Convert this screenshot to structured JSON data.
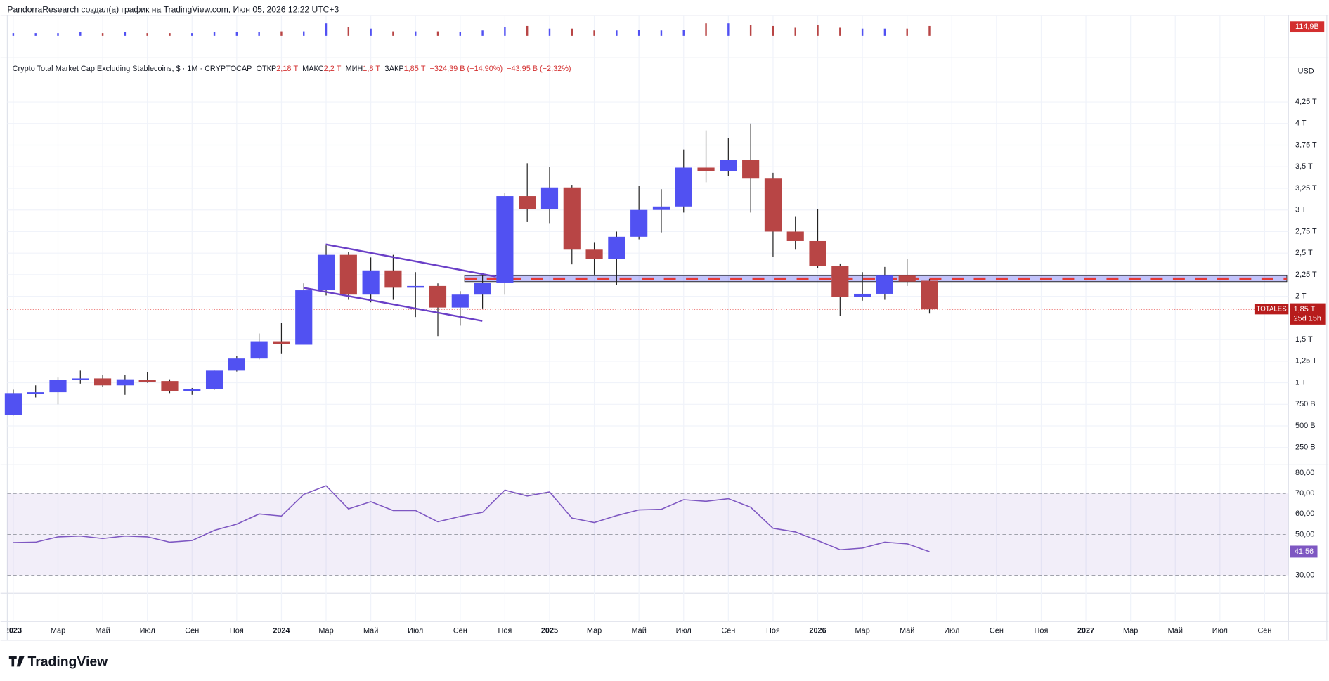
{
  "header": {
    "attribution": "PandorraResearch создал(а) график на TradingView.com, Июн 05, 2026 12:22 UTC+3",
    "brand": "TradingView"
  },
  "chart_data": [
    {
      "type": "candlestick",
      "legend": {
        "title": "Crypto Total Market Cap Excluding Stablecoins, $ · 1M · CRYPTOCAP",
        "items": [
          {
            "label": "ОТКР",
            "value": "2,18 T"
          },
          {
            "label": "МАКС",
            "value": "2,2 T"
          },
          {
            "label": "МИН",
            "value": "1,8 T"
          },
          {
            "label": "ЗАКР",
            "value": "1,85 T"
          }
        ],
        "change": "−324,39 B (−14,90%)",
        "change2": "−43,95 B (−2,32%)"
      },
      "currency": "USD",
      "up_color": "#5151f2",
      "down_color": "#b84545",
      "open": [
        0.63,
        0.88,
        0.89,
        1.03,
        1.05,
        0.97,
        1.03,
        1.02,
        0.9,
        0.93,
        1.14,
        1.28,
        1.48,
        1.44,
        2.07,
        2.48,
        2.02,
        2.3,
        2.1,
        2.12,
        1.87,
        2.02,
        2.16,
        3.16,
        3.01,
        3.26,
        2.54,
        2.43,
        2.69,
        3.0,
        3.04,
        3.49,
        3.45,
        3.58,
        3.37,
        2.75,
        2.64,
        2.35,
        1.99,
        2.03,
        2.24,
        2.18
      ],
      "high": [
        0.92,
        0.97,
        1.06,
        1.14,
        1.09,
        1.09,
        1.12,
        1.04,
        0.94,
        1.14,
        1.31,
        1.57,
        1.69,
        2.15,
        2.59,
        2.51,
        2.45,
        2.48,
        2.28,
        2.15,
        2.06,
        2.26,
        3.2,
        3.54,
        3.5,
        3.29,
        2.62,
        2.75,
        3.28,
        3.24,
        3.7,
        3.92,
        3.83,
        4.0,
        3.43,
        2.92,
        3.01,
        2.38,
        2.28,
        2.34,
        2.43,
        2.2
      ],
      "low": [
        0.62,
        0.83,
        0.75,
        0.99,
        0.95,
        0.86,
        1.0,
        0.88,
        0.86,
        0.92,
        1.13,
        1.27,
        1.34,
        1.44,
        2.01,
        1.96,
        1.93,
        1.96,
        1.76,
        1.54,
        1.66,
        1.86,
        2.02,
        2.86,
        2.84,
        2.37,
        2.25,
        2.13,
        2.66,
        2.74,
        2.97,
        3.32,
        3.39,
        2.97,
        2.46,
        2.54,
        2.33,
        1.77,
        1.95,
        1.96,
        2.12,
        1.8
      ],
      "close": [
        0.88,
        0.89,
        1.03,
        1.05,
        0.97,
        1.04,
        1.01,
        0.9,
        0.93,
        1.14,
        1.28,
        1.48,
        1.45,
        2.07,
        2.48,
        2.02,
        2.3,
        2.1,
        2.12,
        1.87,
        2.02,
        2.16,
        3.16,
        3.01,
        3.26,
        2.54,
        2.43,
        2.69,
        3.0,
        3.04,
        3.49,
        3.45,
        3.58,
        3.37,
        2.75,
        2.64,
        2.35,
        1.99,
        2.03,
        2.24,
        2.17,
        1.85
      ],
      "last_price": {
        "value": 1.85,
        "label": "1,85 T",
        "countdown": "25d 15h",
        "symbol": "TOTALES"
      },
      "zone": {
        "low": 2.17,
        "high": 2.24
      },
      "xlim": [
        -0.267,
        57.067
      ],
      "xticks": [
        {
          "value": 0,
          "label": "2023"
        },
        {
          "value": 2,
          "label": "Мар"
        },
        {
          "value": 4,
          "label": "Май"
        },
        {
          "value": 6,
          "label": "Июл"
        },
        {
          "value": 8,
          "label": "Сен"
        },
        {
          "value": 10,
          "label": "Ноя"
        },
        {
          "value": 12,
          "label": "2024"
        },
        {
          "value": 14,
          "label": "Мар"
        },
        {
          "value": 16,
          "label": "Май"
        },
        {
          "value": 18,
          "label": "Июл"
        },
        {
          "value": 20,
          "label": "Сен"
        },
        {
          "value": 22,
          "label": "Ноя"
        },
        {
          "value": 24,
          "label": "2025"
        },
        {
          "value": 26,
          "label": "Мар"
        },
        {
          "value": 28,
          "label": "Май"
        },
        {
          "value": 30,
          "label": "Июл"
        },
        {
          "value": 32,
          "label": "Сен"
        },
        {
          "value": 34,
          "label": "Ноя"
        },
        {
          "value": 36,
          "label": "2026"
        },
        {
          "value": 38,
          "label": "Мар"
        },
        {
          "value": 40,
          "label": "Май"
        },
        {
          "value": 42,
          "label": "Июл"
        },
        {
          "value": 44,
          "label": "Сен"
        },
        {
          "value": 46,
          "label": "Ноя"
        },
        {
          "value": 48,
          "label": "2027"
        },
        {
          "value": 50,
          "label": "Мар"
        },
        {
          "value": 52,
          "label": "Май"
        },
        {
          "value": 54,
          "label": "Июл"
        },
        {
          "value": 56,
          "label": "Сен"
        }
      ],
      "ylim": [
        0.06,
        4.76
      ],
      "yticks": [
        {
          "value": 0.25,
          "label": "250 B"
        },
        {
          "value": 0.5,
          "label": "500 B"
        },
        {
          "value": 0.75,
          "label": "750 B"
        },
        {
          "value": 1,
          "label": "1 T"
        },
        {
          "value": 1.25,
          "label": "1,25 T"
        },
        {
          "value": 1.5,
          "label": "1,5 T"
        },
        {
          "value": 2,
          "label": "2 T"
        },
        {
          "value": 2.25,
          "label": "2,25 T"
        },
        {
          "value": 2.5,
          "label": "2,5 T"
        },
        {
          "value": 2.75,
          "label": "2,75 T"
        },
        {
          "value": 3,
          "label": "3 T"
        },
        {
          "value": 3.25,
          "label": "3,25 T"
        },
        {
          "value": 3.5,
          "label": "3,5 T"
        },
        {
          "value": 3.75,
          "label": "3,75 T"
        },
        {
          "value": 4,
          "label": "4 T"
        },
        {
          "value": 4.25,
          "label": "4,25 T"
        }
      ],
      "grid": true
    },
    {
      "type": "bar",
      "values": [
        31,
        31,
        31,
        42,
        31,
        42,
        31,
        31,
        31,
        42,
        42,
        42,
        52,
        52,
        146,
        104,
        84,
        52,
        52,
        52,
        42,
        63,
        104,
        115,
        84,
        84,
        63,
        63,
        73,
        63,
        73,
        146,
        146,
        125,
        115,
        94,
        125,
        94,
        84,
        84,
        84,
        114.9
      ],
      "value_labels": [
        null,
        null,
        null,
        null,
        null,
        null,
        null,
        null,
        null,
        null,
        null,
        null,
        null,
        null,
        null,
        null,
        null,
        null,
        null,
        null,
        null,
        null,
        null,
        null,
        null,
        null,
        null,
        null,
        null,
        null,
        null,
        null,
        null,
        null,
        null,
        null,
        null,
        null,
        null,
        null,
        null,
        "114,9B"
      ],
      "ylim": [
        0,
        160
      ]
    },
    {
      "type": "line",
      "color": "#7e57c2",
      "values": [
        46,
        46.2,
        48.8,
        49.2,
        48,
        49.2,
        48.8,
        46.2,
        47,
        52,
        55,
        60,
        59,
        69.6,
        73.8,
        62.5,
        66,
        61.7,
        61.7,
        56.2,
        58.8,
        60.8,
        71.7,
        68.8,
        70.8,
        58,
        55.8,
        59.2,
        62,
        62.3,
        67,
        66.2,
        67.5,
        63.3,
        53,
        51.2,
        47,
        42.5,
        43.3,
        46.2,
        45.4,
        41.56
      ],
      "value_labels": [
        null,
        null,
        null,
        null,
        null,
        null,
        null,
        null,
        null,
        null,
        null,
        null,
        null,
        null,
        null,
        null,
        null,
        null,
        null,
        null,
        null,
        null,
        null,
        null,
        null,
        null,
        null,
        null,
        null,
        null,
        null,
        null,
        null,
        null,
        null,
        null,
        null,
        null,
        null,
        null,
        null,
        "41,56"
      ],
      "band": [
        30,
        70
      ],
      "levels": [
        70,
        50,
        30
      ],
      "ylim": [
        22,
        83.25
      ],
      "yticks": [
        {
          "value": 30,
          "label": "30,00"
        },
        {
          "value": 50,
          "label": "50,00"
        },
        {
          "value": 60,
          "label": "60,00"
        },
        {
          "value": 70,
          "label": "70,00"
        },
        {
          "value": 80,
          "label": "80,00"
        }
      ]
    }
  ]
}
